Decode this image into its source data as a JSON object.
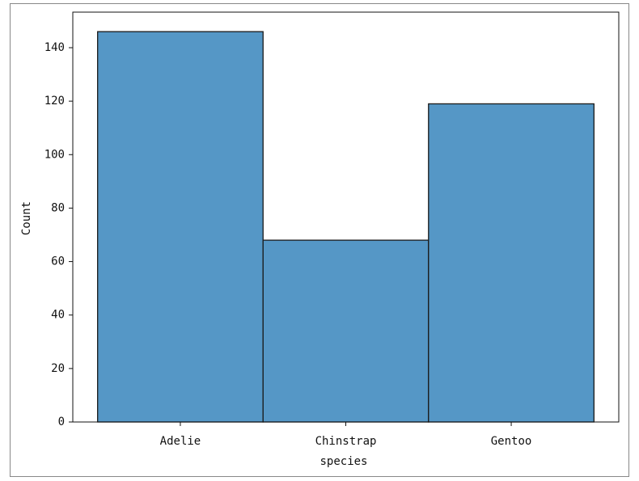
{
  "chart_data": {
    "type": "bar",
    "xlabel": "species",
    "ylabel": "Count",
    "categories": [
      "Adelie",
      "Chinstrap",
      "Gentoo"
    ],
    "values": [
      146,
      68,
      119
    ],
    "color": "#5597c6",
    "edgecolor": "#1a1a1a",
    "ylim": [
      0,
      153.3
    ],
    "yticks": [
      0,
      20,
      40,
      60,
      80,
      100,
      120,
      140
    ]
  }
}
